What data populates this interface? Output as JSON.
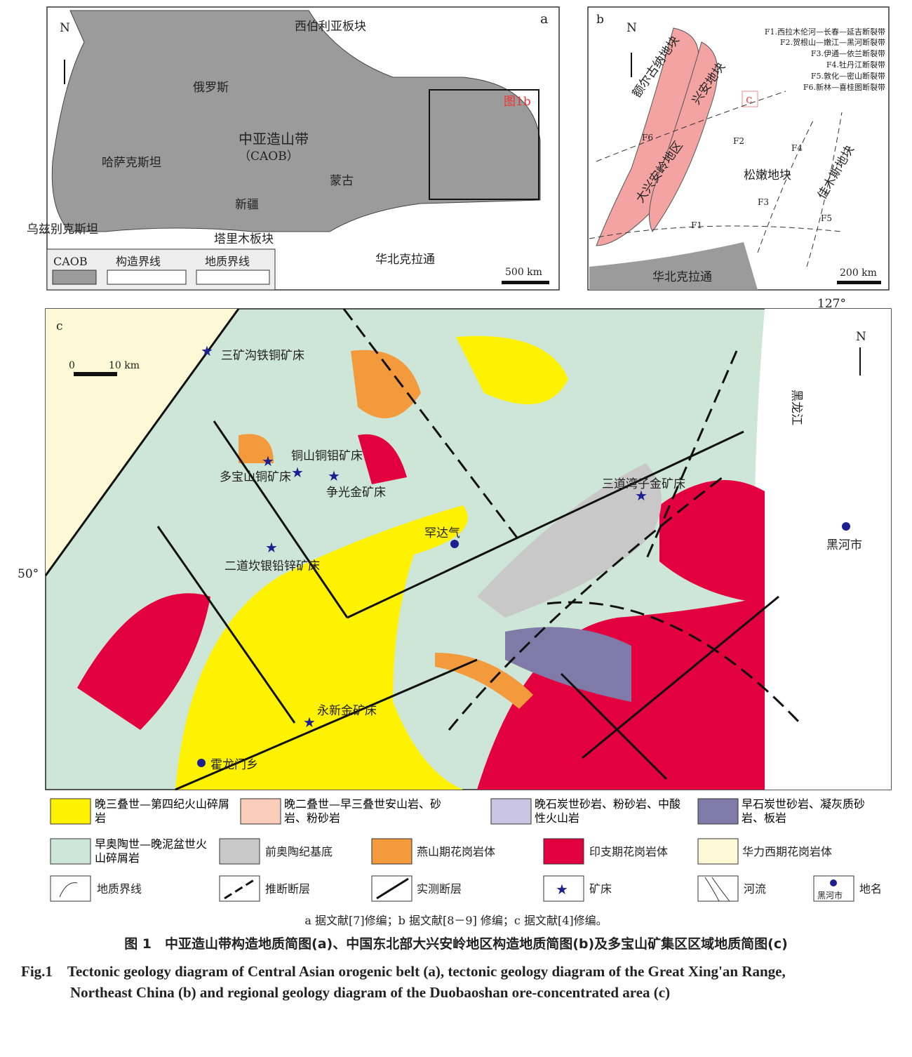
{
  "panel_a": {
    "label": "a",
    "north": "N",
    "labels": [
      "西伯利亚板块",
      "俄罗斯",
      "中亚造山带",
      "（CAOB）",
      "哈萨克斯坦",
      "蒙古",
      "新疆",
      "乌兹别克斯坦",
      "塔里木板块",
      "华北克拉通"
    ],
    "inset_label": "图1b",
    "scale": "500 km",
    "legend": [
      "CAOB",
      "构造界线",
      "地质界线"
    ]
  },
  "panel_b": {
    "label": "b",
    "north": "N",
    "faults": [
      "F1.西拉木伦河—长春—延吉断裂带",
      "F2.贺根山—嫩江—黑河断裂带",
      "F3.伊通—依兰断裂带",
      "F4.牡丹江断裂带",
      "F5.敦化—密山断裂带",
      "F6.新林—喜桂图断裂带"
    ],
    "labels": [
      "额尔古纳地块",
      "兴安地块",
      "大兴安岭地区",
      "松嫩地块",
      "佳木斯地块",
      "华北克拉通"
    ],
    "fault_tags": [
      "F1",
      "F2",
      "F3",
      "F4",
      "F5",
      "F6"
    ],
    "inset_label": "c",
    "scale": "200 km"
  },
  "panel_c": {
    "label": "c",
    "north": "N",
    "lon": "127°",
    "lat": "50°",
    "scale_0": "0",
    "scale_10": "10 km",
    "deposits": [
      "三矿沟铁铜矿床",
      "铜山铜钼矿床",
      "多宝山铜矿床",
      "争光金矿床",
      "三道湾子金矿床",
      "二道坎银铅锌矿床",
      "永新金矿床"
    ],
    "places": [
      "罕达气",
      "黑河市",
      "霍龙门乡"
    ],
    "river": "黑龙江"
  },
  "legend": {
    "units": [
      {
        "label": "晚三叠世—第四纪火山碎屑岩",
        "color": "#fff200"
      },
      {
        "label": "晚二叠世—早三叠世安山岩、砂岩、粉砂岩",
        "color": "#f9cdb9"
      },
      {
        "label": "晚石炭世砂岩、粉砂岩、中酸性火山岩",
        "color": "#c9c5e2"
      },
      {
        "label": "早石炭世砂岩、凝灰质砂岩、板岩",
        "color": "#7f7aa8"
      },
      {
        "label": "早奥陶世—晚泥盆世火山碎屑岩",
        "color": "#cde6d7"
      },
      {
        "label": "前奥陶纪基底",
        "color": "#c8c8c8"
      },
      {
        "label": "燕山期花岗岩体",
        "color": "#f39a3c"
      },
      {
        "label": "印支期花岗岩体",
        "color": "#e3003f"
      },
      {
        "label": "华力西期花岗岩体",
        "color": "#fdf8d5"
      }
    ],
    "symbols": [
      "地质界线",
      "推断断层",
      "实测断层",
      "矿床",
      "河流",
      "地名"
    ],
    "place_sample": "黑河市"
  },
  "caption": {
    "source": "a 据文献[7]修编；b 据文献[8－9] 修编；c 据文献[4]修编。",
    "title_cn": "图 1　中亚造山带构造地质简图(a)、中国东北部大兴安岭地区构造地质简图(b)及多宝山矿集区区域地质简图(c)",
    "title_en_1": "Fig.1　Tectonic geology diagram of Central Asian orogenic belt (a), tectonic geology diagram of the Great Xing'an Range,",
    "title_en_2": "Northeast China (b) and regional geology diagram of the Duobaoshan ore-concentrated area (c)"
  }
}
